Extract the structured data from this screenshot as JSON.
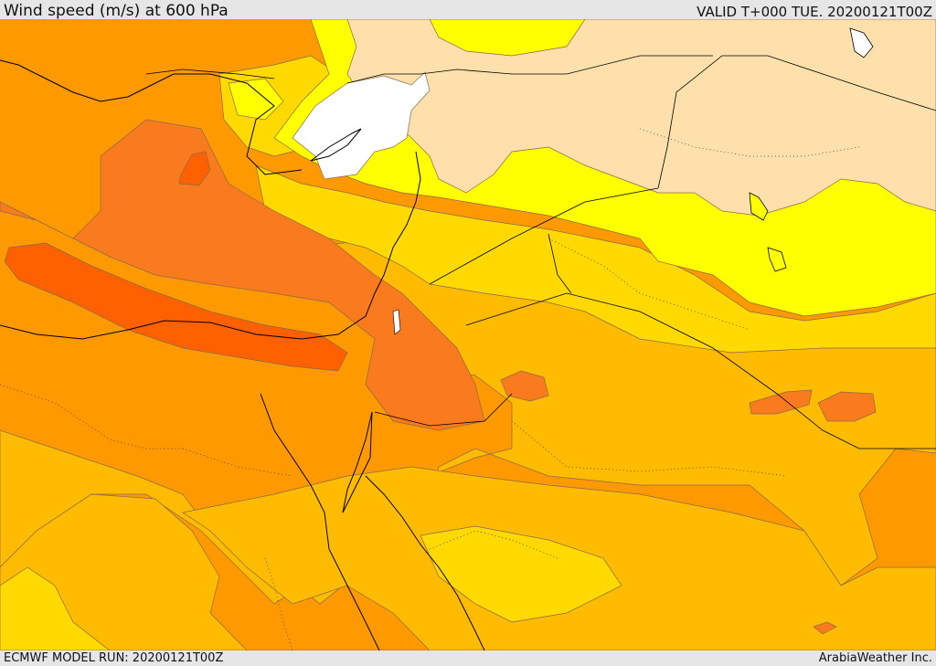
{
  "header": {
    "title": "Wind speed (m/s) at 600 hPa",
    "valid": "VALID T+000 TUE. 20200121T00Z"
  },
  "footer": {
    "model_run": "ECMWF MODEL RUN: 20200121T00Z",
    "credit": "ArabiaWeather Inc."
  },
  "palette": {
    "white": "#ffffff",
    "peach": "#fde0ac",
    "yellow": "#ffff00",
    "gold": "#ffd900",
    "amber": "#ffbb00",
    "orange": "#ff9900",
    "dark_orange": "#fa7a1e",
    "red_orange": "#ff6000"
  }
}
